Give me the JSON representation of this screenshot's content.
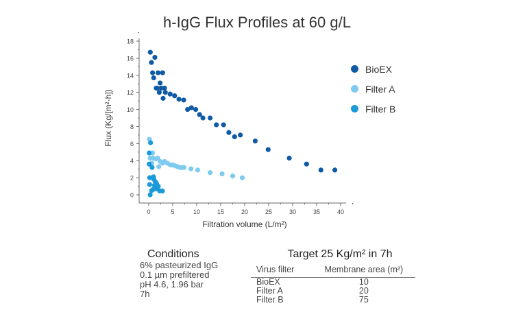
{
  "chart_data": {
    "type": "scatter",
    "title": "h-IgG Flux Profiles at 60 g/L",
    "xlabel": "Filtration volume (L/m²)",
    "ylabel": "Flux (Kg/[m²·h])",
    "xlim": [
      0,
      40
    ],
    "ylim": [
      0,
      18
    ],
    "xticks": [
      "0",
      "5",
      "10",
      "15",
      "20",
      "25",
      "30",
      "35",
      "40"
    ],
    "yticks": [
      "0",
      "2",
      "4",
      "6",
      "8",
      "10",
      "12",
      "14",
      "16",
      "18"
    ],
    "grid": false,
    "legend_position": "right",
    "series": [
      {
        "name": "BioEX",
        "color": "#0f5aa6",
        "points": [
          [
            0.33,
            16.7
          ],
          [
            1.28,
            16.1
          ],
          [
            0.57,
            15.5
          ],
          [
            0.8,
            14.3
          ],
          [
            1.95,
            14.3
          ],
          [
            2.9,
            14.3
          ],
          [
            1.04,
            13.7
          ],
          [
            2.37,
            13.1
          ],
          [
            1.57,
            12.5
          ],
          [
            1.75,
            12.5
          ],
          [
            2.6,
            12.5
          ],
          [
            3.3,
            12.5
          ],
          [
            2.2,
            12.0
          ],
          [
            3.46,
            12.0
          ],
          [
            3.0,
            11.3
          ],
          [
            4.46,
            11.8
          ],
          [
            5.4,
            11.6
          ],
          [
            6.3,
            11.2
          ],
          [
            7.3,
            11.1
          ],
          [
            8.1,
            10.0
          ],
          [
            8.9,
            10.2
          ],
          [
            9.8,
            10.0
          ],
          [
            10.6,
            9.4
          ],
          [
            11.3,
            9.0
          ],
          [
            12.8,
            9.0
          ],
          [
            14.1,
            8.2
          ],
          [
            15.6,
            8.2
          ],
          [
            16.7,
            7.3
          ],
          [
            17.9,
            6.8
          ],
          [
            19.1,
            7.0
          ],
          [
            22.2,
            6.3
          ],
          [
            24.9,
            5.3
          ],
          [
            29.3,
            4.3
          ],
          [
            32.9,
            3.6
          ],
          [
            35.9,
            2.9
          ],
          [
            38.8,
            2.9
          ]
        ]
      },
      {
        "name": "Filter A",
        "color": "#7fcbf0",
        "points": [
          [
            0.14,
            6.5
          ],
          [
            0.8,
            4.9
          ],
          [
            0.3,
            4.3
          ],
          [
            0.9,
            4.3
          ],
          [
            1.5,
            4.2
          ],
          [
            1.9,
            4.3
          ],
          [
            0.66,
            3.7
          ],
          [
            2.1,
            3.3
          ],
          [
            2.4,
            3.9
          ],
          [
            2.9,
            3.7
          ],
          [
            3.3,
            3.9
          ],
          [
            3.9,
            3.7
          ],
          [
            4.5,
            3.5
          ],
          [
            5.0,
            3.5
          ],
          [
            5.5,
            3.4
          ],
          [
            6.0,
            3.3
          ],
          [
            6.5,
            3.2
          ],
          [
            7.0,
            3.2
          ],
          [
            7.35,
            3.2
          ],
          [
            8.8,
            3.05
          ],
          [
            10.2,
            2.9
          ],
          [
            12.8,
            2.6
          ],
          [
            15.3,
            2.45
          ],
          [
            17.5,
            2.2
          ],
          [
            19.5,
            2.0
          ]
        ]
      },
      {
        "name": "Filter B",
        "color": "#1a9ad8",
        "points": [
          [
            0.1,
            4.9
          ],
          [
            0.38,
            6.1
          ],
          [
            0.1,
            3.6
          ],
          [
            0.7,
            3.2
          ],
          [
            0.2,
            2.0
          ],
          [
            0.7,
            2.0
          ],
          [
            1.0,
            2.1
          ],
          [
            0.2,
            1.2
          ],
          [
            0.3,
            0.0
          ],
          [
            0.85,
            0.6
          ],
          [
            1.2,
            1.1
          ],
          [
            1.4,
            1.5
          ],
          [
            1.65,
            1.3
          ],
          [
            1.9,
            0.9
          ],
          [
            1.6,
            0.7
          ],
          [
            2.3,
            0.45
          ],
          [
            2.85,
            0.45
          ],
          [
            2.0,
            1.0
          ],
          [
            1.1,
            1.8
          ],
          [
            0.6,
            0.5
          ]
        ]
      }
    ]
  },
  "conditions": {
    "heading": "Conditions",
    "lines": [
      "6% pasteurized IgG",
      "0.1 µm prefiltered",
      "pH 4.6, 1.96 bar",
      "7h"
    ]
  },
  "target": {
    "heading": "Target 25 Kg/m² in 7h",
    "columns": [
      "Virus filter",
      "Membrane area (m²)"
    ],
    "rows": [
      [
        "BioEX",
        "10"
      ],
      [
        "Filter A",
        "20"
      ],
      [
        "Filter B",
        "75"
      ]
    ]
  }
}
